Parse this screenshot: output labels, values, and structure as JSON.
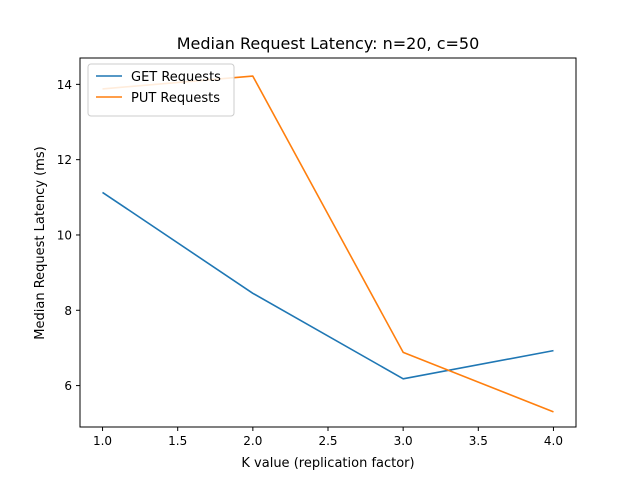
{
  "chart_data": {
    "type": "line",
    "title": "Median Request Latency: n=20, c=50",
    "xlabel": "K value (replication factor)",
    "ylabel": "Median Request Latency (ms)",
    "x": [
      1.0,
      2.0,
      3.0,
      4.0
    ],
    "xlim": [
      0.85,
      4.15
    ],
    "ylim": [
      4.9,
      14.7
    ],
    "xticks": [
      1.0,
      1.5,
      2.0,
      2.5,
      3.0,
      3.5,
      4.0
    ],
    "xtick_labels": [
      "1.0",
      "1.5",
      "2.0",
      "2.5",
      "3.0",
      "3.5",
      "4.0"
    ],
    "yticks": [
      6,
      8,
      10,
      12,
      14
    ],
    "ytick_labels": [
      "6",
      "8",
      "10",
      "12",
      "14"
    ],
    "grid": false,
    "legend_position": "top-left",
    "series": [
      {
        "name": "GET Requests",
        "color": "#1f77b4",
        "values": [
          11.13,
          8.45,
          6.18,
          6.93
        ]
      },
      {
        "name": "PUT Requests",
        "color": "#ff7f0e",
        "values": [
          13.88,
          14.22,
          6.88,
          5.3
        ]
      }
    ]
  }
}
